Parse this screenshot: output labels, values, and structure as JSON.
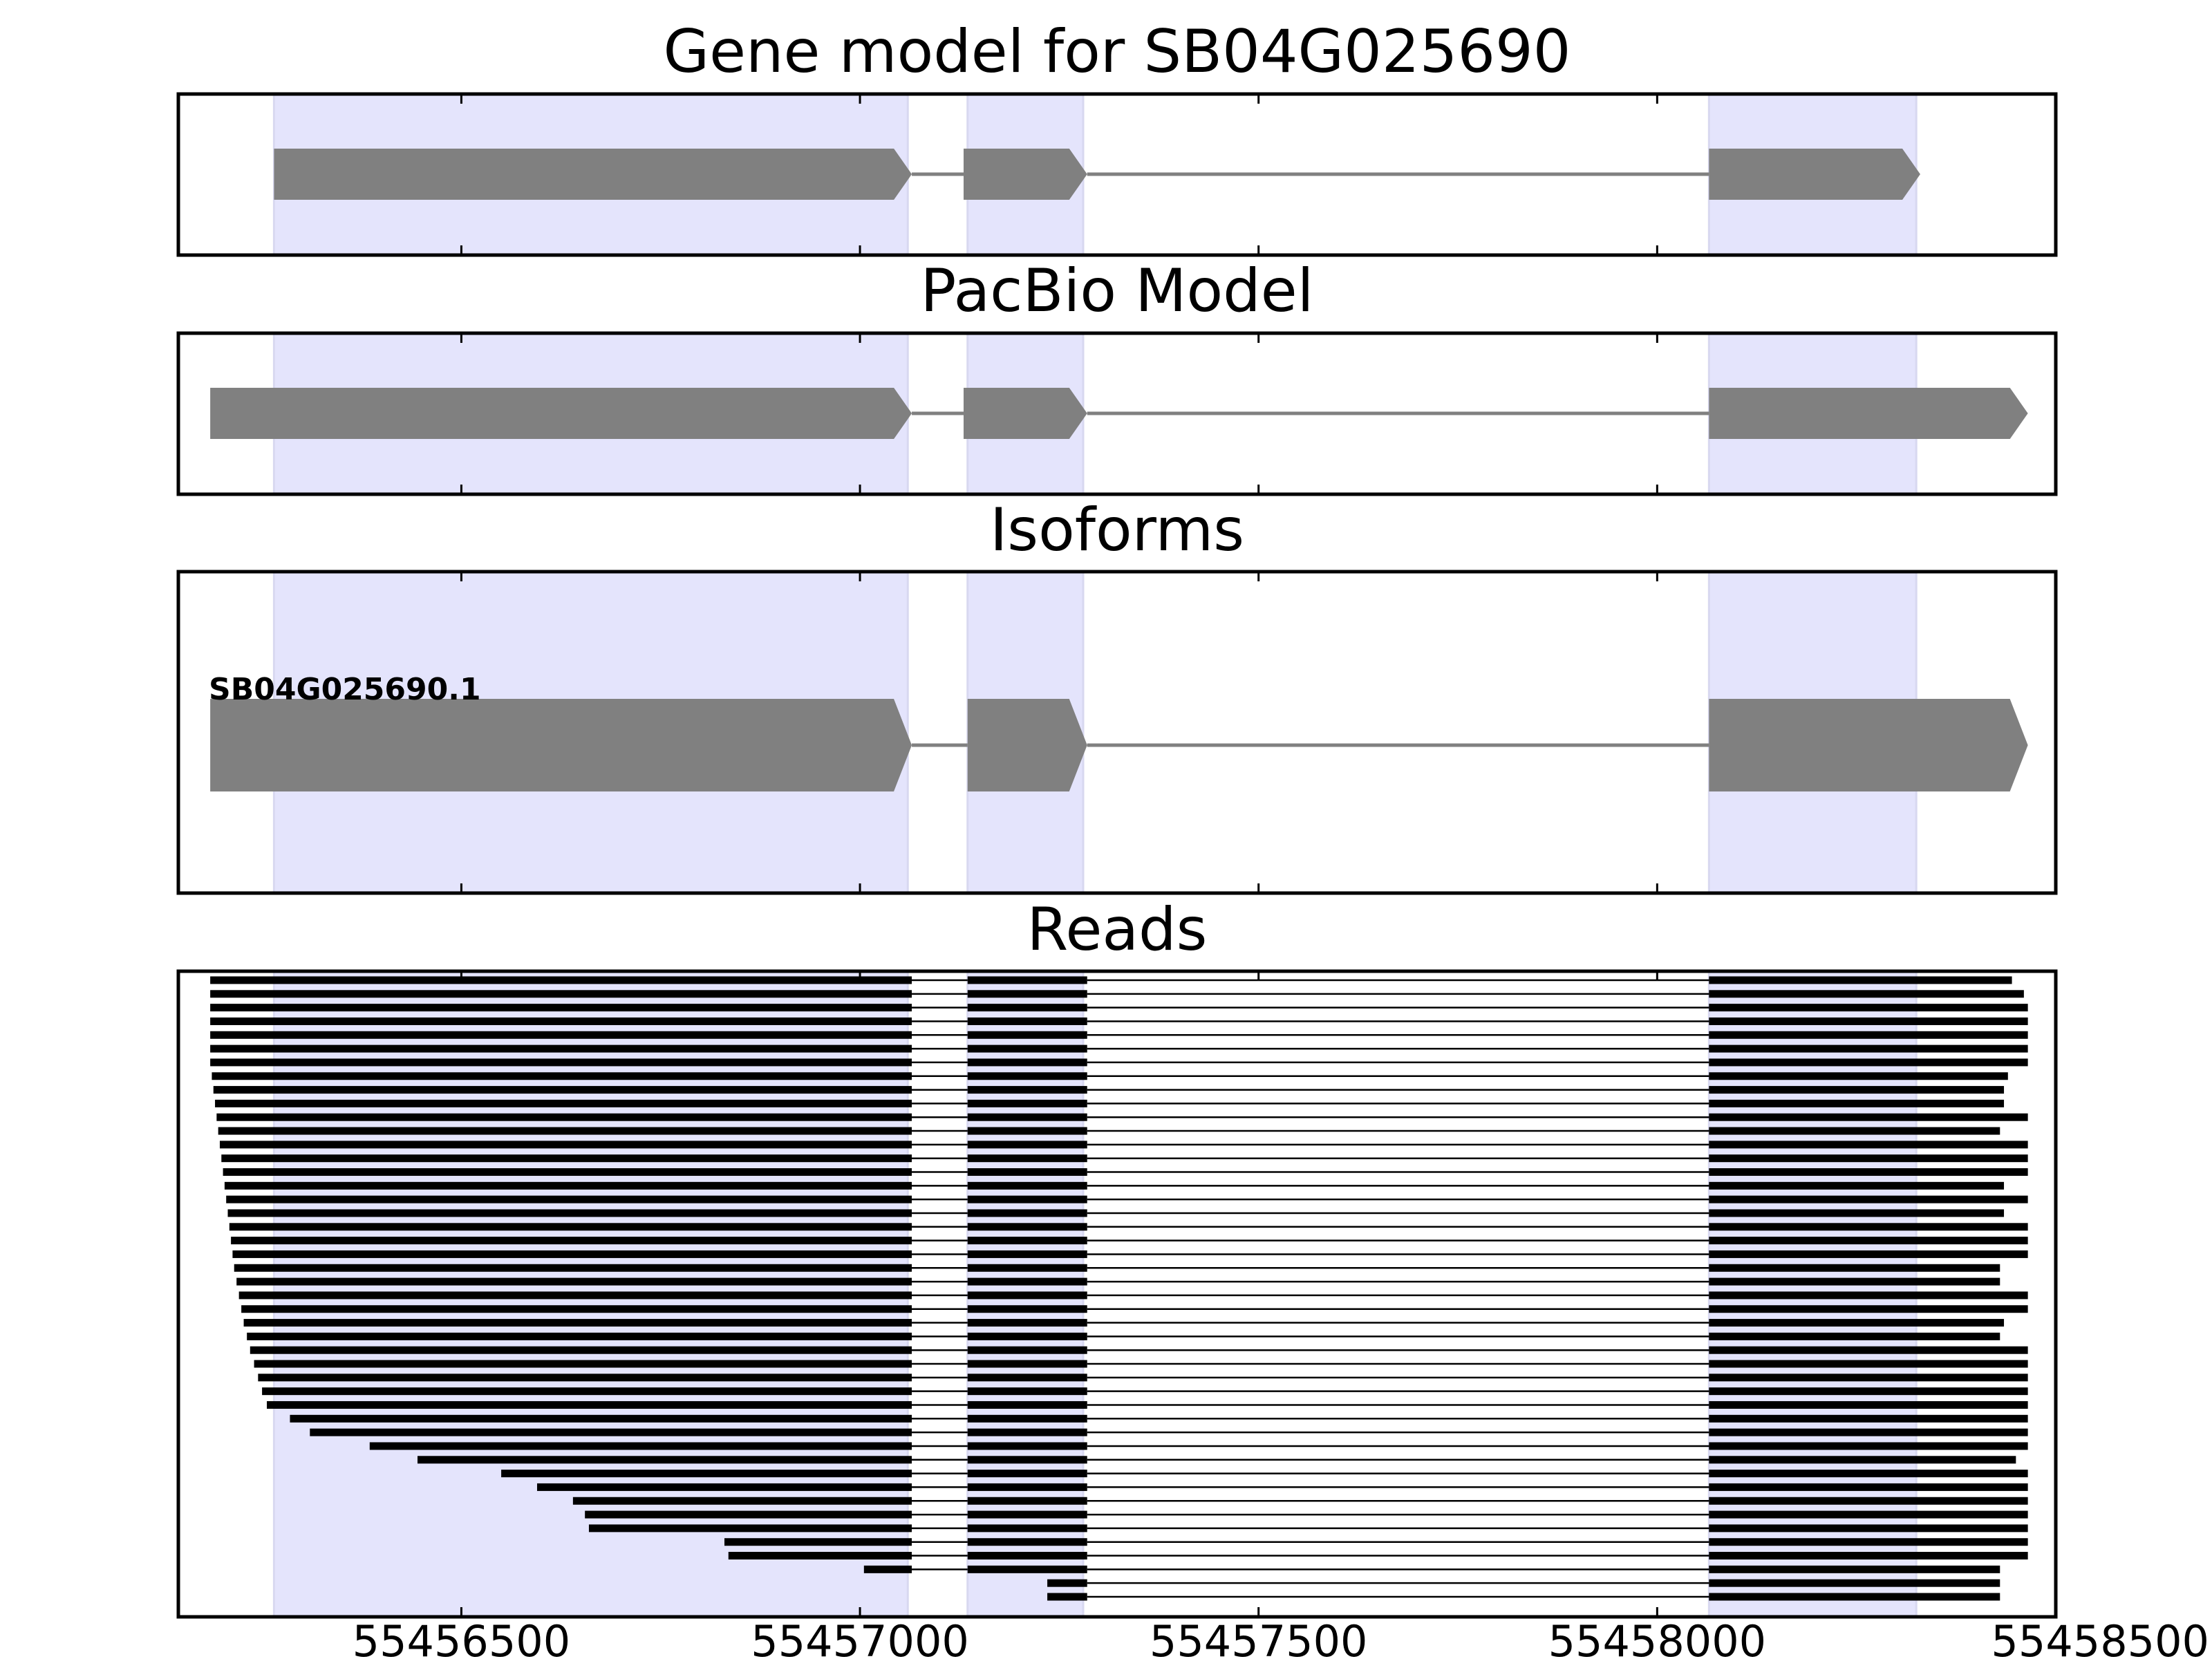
{
  "chart_data": {
    "type": "gene-structure",
    "xlim": [
      55456145,
      55458500
    ],
    "xticks": [
      55456500,
      55457000,
      55457500,
      55458000,
      55458500
    ],
    "xtick_labels": [
      "55456500",
      "55457000",
      "55457500",
      "55458000",
      "55458500"
    ],
    "colors": {
      "highlight": "#e4e4fc",
      "exon": "#808080",
      "read": "#000000",
      "frame": "#000000"
    },
    "highlight_regions": [
      [
        55456265,
        55457060
      ],
      [
        55457135,
        55457280
      ],
      [
        55458065,
        55458325
      ]
    ],
    "panels": [
      {
        "title": "Gene model for SB04G025690",
        "strand": "+",
        "exons": [
          [
            55456265,
            55457065
          ],
          [
            55457130,
            55457285
          ],
          [
            55458065,
            55458330
          ]
        ]
      },
      {
        "title": "PacBio Model",
        "strand": "+",
        "exons": [
          [
            55456185,
            55457065
          ],
          [
            55457130,
            55457285
          ],
          [
            55458065,
            55458465
          ]
        ]
      },
      {
        "title": "Isoforms",
        "isoforms": [
          {
            "name": "SB04G025690.1",
            "strand": "+",
            "exons": [
              [
                55456185,
                55457065
              ],
              [
                55457135,
                55457285
              ],
              [
                55458065,
                55458465
              ]
            ]
          }
        ]
      },
      {
        "title": "Reads",
        "read_starts": [
          55456173,
          55456175,
          55456177,
          55456179,
          55456181,
          55456183,
          55456185,
          55456187,
          55456189,
          55456191,
          55456193,
          55456195,
          55456197,
          55456199,
          55456201,
          55456203,
          55456205,
          55456207,
          55456209,
          55456211,
          55456213,
          55456215,
          55456218,
          55456221,
          55456224,
          55456227,
          55456231,
          55456235,
          55456240,
          55456245,
          55456250,
          55456256,
          55456285,
          55456310,
          55456385,
          55456445,
          55456550,
          55456595,
          55456640,
          55456655,
          55456660,
          55456830,
          55456835,
          55457005,
          55457235,
          55457235
        ],
        "read_ends": [
          55458445,
          55458460,
          55458490,
          55458490,
          55458485,
          55458465,
          55458495,
          55458440,
          55458435,
          55458435,
          55458475,
          55458430,
          55458465,
          55458490,
          55458490,
          55458435,
          55458490,
          55458435,
          55458470,
          55458475,
          55458490,
          55458430,
          55458430,
          55458490,
          55458500,
          55458435,
          55458430,
          55458500,
          55458490,
          55458490,
          55458490,
          55458475,
          55458490,
          55458490,
          55458490,
          55458450,
          55458490,
          55458495,
          55458500,
          55458500,
          55458500,
          55458500,
          55458500,
          55458430,
          55458430,
          55458430
        ]
      }
    ]
  }
}
